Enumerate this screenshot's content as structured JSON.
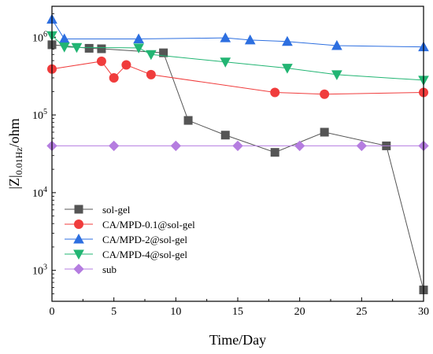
{
  "chart_data": {
    "type": "line",
    "xlabel": "Time/Day",
    "ylabel_main": "|Z|",
    "ylabel_sub": "0.01Hz",
    "ylabel_unit": "/ohm",
    "x_ticks": [
      "0",
      "5",
      "10",
      "15",
      "20",
      "25",
      "30"
    ],
    "x_tick_values": [
      0,
      5,
      10,
      15,
      20,
      25,
      30
    ],
    "xlim": [
      0,
      30
    ],
    "y_scale": "log",
    "ylim": [
      400,
      2500000
    ],
    "y_ticks": [
      {
        "value": 1000,
        "base": "10",
        "exp": "3"
      },
      {
        "value": 10000,
        "base": "10",
        "exp": "4"
      },
      {
        "value": 100000,
        "base": "10",
        "exp": "5"
      },
      {
        "value": 1000000,
        "base": "10",
        "exp": "6"
      }
    ],
    "legend_position": "lower-left",
    "series": [
      {
        "name": "sol-gel",
        "color": "#555555",
        "marker": "square",
        "x": [
          0,
          3,
          4,
          9,
          11,
          14,
          18,
          22,
          27,
          30
        ],
        "y": [
          800000,
          720000,
          710000,
          630000,
          85000,
          55000,
          33000,
          60000,
          40000,
          560
        ]
      },
      {
        "name": "CA/MPD-0.1@sol-gel",
        "color": "#f03c3c",
        "marker": "circle",
        "x": [
          0,
          4,
          5,
          6,
          8,
          18,
          22,
          30
        ],
        "y": [
          390000,
          490000,
          300000,
          440000,
          330000,
          195000,
          185000,
          195000
        ]
      },
      {
        "name": "CA/MPD-2@sol-gel",
        "color": "#2d6fe0",
        "marker": "triangle-up",
        "x": [
          0,
          1,
          7,
          14,
          16,
          19,
          23,
          30
        ],
        "y": [
          1700000,
          950000,
          950000,
          980000,
          920000,
          880000,
          780000,
          750000
        ]
      },
      {
        "name": "CA/MPD-4@sol-gel",
        "color": "#22b573",
        "marker": "triangle-down",
        "x": [
          0,
          1,
          2,
          7,
          8,
          14,
          19,
          23,
          30
        ],
        "y": [
          1050000,
          750000,
          740000,
          730000,
          600000,
          480000,
          400000,
          330000,
          280000
        ]
      },
      {
        "name": "sub",
        "color": "#b57de0",
        "marker": "diamond",
        "x": [
          0,
          5,
          10,
          15,
          20,
          25,
          30
        ],
        "y": [
          40000,
          40000,
          40000,
          40000,
          40000,
          40000,
          40000
        ]
      }
    ]
  }
}
